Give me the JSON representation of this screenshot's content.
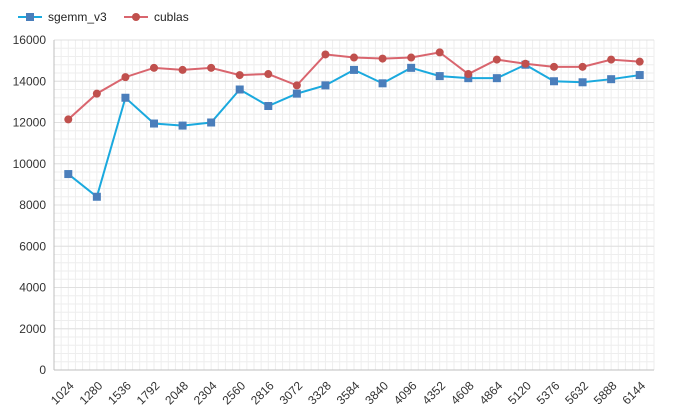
{
  "chart_data": {
    "type": "line",
    "title": "",
    "xlabel": "",
    "ylabel": "",
    "categories": [
      "1024",
      "1280",
      "1536",
      "1792",
      "2048",
      "2304",
      "2560",
      "2816",
      "3072",
      "3328",
      "3584",
      "3840",
      "4096",
      "4352",
      "4608",
      "4864",
      "5120",
      "5376",
      "5632",
      "5888",
      "6144"
    ],
    "ylim": [
      0,
      16000
    ],
    "yticks": [
      0,
      2000,
      4000,
      6000,
      8000,
      10000,
      12000,
      14000,
      16000
    ],
    "grid": true,
    "legend_position": "top-left",
    "series": [
      {
        "name": "sgemm_v3",
        "color": "#1aa9de",
        "marker": "square",
        "marker_color": "#4a7ebb",
        "values": [
          9500,
          8400,
          13200,
          11950,
          11850,
          12000,
          13600,
          12800,
          13400,
          13800,
          14550,
          13900,
          14650,
          14250,
          14150,
          14150,
          14800,
          14000,
          13950,
          14100,
          14300
        ]
      },
      {
        "name": "cublas",
        "color": "#d9656e",
        "marker": "circle",
        "marker_color": "#c0504d",
        "values": [
          12150,
          13400,
          14200,
          14650,
          14550,
          14650,
          14300,
          14350,
          13800,
          15300,
          15150,
          15100,
          15150,
          15400,
          14350,
          15050,
          14850,
          14700,
          14700,
          15050,
          14950
        ]
      }
    ]
  }
}
